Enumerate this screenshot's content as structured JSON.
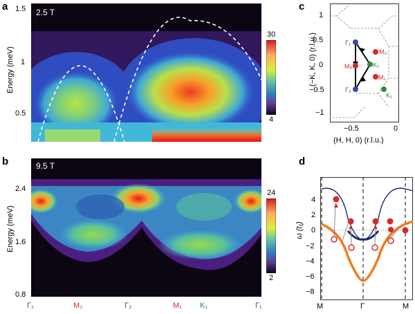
{
  "panels": {
    "a": {
      "label": "a",
      "field": "2.5 T",
      "ylabel": "Energy (meV)",
      "yticks": [
        "1.5",
        "1",
        "0.5"
      ],
      "cbar_max": "30",
      "cbar_min": "4"
    },
    "b": {
      "label": "b",
      "field": "9.5 T",
      "ylabel": "Energy (meV)",
      "yticks": [
        "2.4",
        "1.6",
        "0.8"
      ],
      "cbar_max": "24",
      "cbar_min": "2"
    },
    "c": {
      "label": "c",
      "ylabel": "(−K, K, 0) (r.l.u.)",
      "xlabel": "(H, H, 0) (r.l.u.)",
      "yticks": [
        "1",
        "0.5",
        "0",
        "−0.5",
        "−1"
      ],
      "xticks": [
        "−0.5",
        "0"
      ],
      "points": {
        "gamma1": "Γ₁",
        "gamma2": "Γ₂",
        "m1": "M₁",
        "m2": "M₂",
        "m3": "M₃",
        "k1": "K₁",
        "k2": "K₂"
      }
    },
    "d": {
      "label": "d",
      "ylabel": "ω (t₁)",
      "yticks": [
        "4",
        "2",
        "0",
        "−2",
        "−4",
        "−6",
        "−8"
      ],
      "xticks": [
        "M",
        "Γ",
        "M"
      ]
    }
  },
  "bottom_axis": {
    "labels": [
      "Γ₁",
      "M₂",
      "Γ₂",
      "M₁",
      "K₁",
      "Γ₁"
    ]
  },
  "colors": {
    "gamma": "#3a47a8",
    "m": "#d42a2a",
    "k": "#2e8a3a",
    "orange": "#f07d1e",
    "navy": "#1a2a7a"
  }
}
